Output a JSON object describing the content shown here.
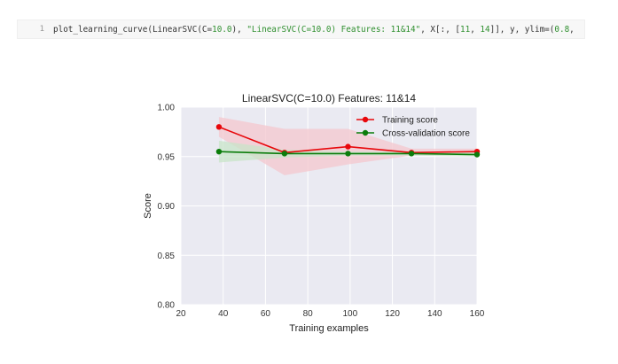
{
  "code_cell": {
    "line_number": "1",
    "segments": [
      {
        "kind": "plain",
        "text": "plot_learning_curve(LinearSVC(C="
      },
      {
        "kind": "num",
        "text": "10.0"
      },
      {
        "kind": "plain",
        "text": "), "
      },
      {
        "kind": "str",
        "text": "\"LinearSVC(C=10.0) Features: 11&14\""
      },
      {
        "kind": "plain",
        "text": ", X[:, ["
      },
      {
        "kind": "num",
        "text": "11"
      },
      {
        "kind": "plain",
        "text": ", "
      },
      {
        "kind": "num",
        "text": "14"
      },
      {
        "kind": "plain",
        "text": "]], y, ylim=("
      },
      {
        "kind": "num",
        "text": "0.8"
      },
      {
        "kind": "plain",
        "text": ","
      }
    ]
  },
  "colors": {
    "plot_background": "#eaeaf2",
    "grid": "#ffffff",
    "training": "#e8070b",
    "training_band": "#f4c7cd",
    "cv": "#0b7d0b",
    "cv_band": "#c8e4c8"
  },
  "chart_data": {
    "type": "line",
    "title": "LinearSVC(C=10.0) Features: 11&14",
    "xlabel": "Training examples",
    "ylabel": "Score",
    "xlim": [
      20,
      160
    ],
    "ylim": [
      0.8,
      1.0
    ],
    "xticks": [
      20,
      40,
      60,
      80,
      100,
      120,
      140,
      160
    ],
    "yticks": [
      0.8,
      0.85,
      0.9,
      0.95,
      1.0
    ],
    "xtick_labels": [
      "20",
      "40",
      "60",
      "80",
      "100",
      "120",
      "140",
      "160"
    ],
    "ytick_labels": [
      "0.80",
      "0.85",
      "0.90",
      "0.95",
      "1.00"
    ],
    "grid": true,
    "legend_position": "top-right",
    "x": [
      38,
      69,
      99,
      129,
      160
    ],
    "series": [
      {
        "name": "Training score",
        "color_key": "training",
        "values": [
          0.98,
          0.954,
          0.96,
          0.954,
          0.955
        ],
        "band_upper": [
          0.99,
          0.978,
          0.978,
          0.958,
          0.958
        ],
        "band_lower": [
          0.97,
          0.931,
          0.942,
          0.951,
          0.952
        ]
      },
      {
        "name": "Cross-validation score",
        "color_key": "cv",
        "values": [
          0.955,
          0.953,
          0.953,
          0.953,
          0.952
        ],
        "band_upper": [
          0.966,
          0.957,
          0.955,
          0.955,
          0.954
        ],
        "band_lower": [
          0.944,
          0.949,
          0.951,
          0.951,
          0.95
        ]
      }
    ]
  }
}
